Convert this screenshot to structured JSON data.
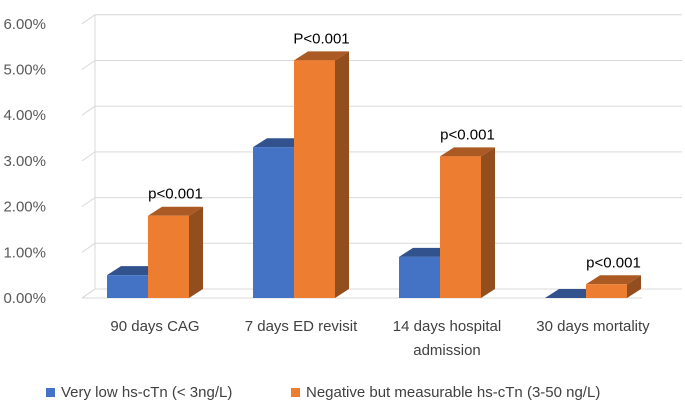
{
  "chart_data": {
    "type": "bar",
    "style": "3d-clustered-column",
    "categories": [
      [
        "90 days CAG"
      ],
      [
        "7 days ED revisit"
      ],
      [
        "14 days hospital",
        "admission"
      ],
      [
        "30 days mortality"
      ]
    ],
    "series": [
      {
        "name": "Very low hs-cTn (< 3ng/L)",
        "values": [
          0.5,
          3.3,
          0.9,
          0.0
        ],
        "color": "#4472C4"
      },
      {
        "name": "Negative but measurable hs-cTn (3-50 ng/L)",
        "values": [
          1.8,
          5.2,
          3.1,
          0.3
        ],
        "color": "#ED7D31"
      }
    ],
    "annotations": [
      "p<0.001",
      "P<0.001",
      "p<0.001",
      "p<0.001"
    ],
    "yticks": [
      "0.00%",
      "1.00%",
      "2.00%",
      "3.00%",
      "4.00%",
      "5.00%",
      "6.00%"
    ],
    "ylim": [
      0,
      6
    ],
    "ylabel": "",
    "xlabel": "",
    "title": "",
    "legend_position": "bottom",
    "grid": true
  }
}
